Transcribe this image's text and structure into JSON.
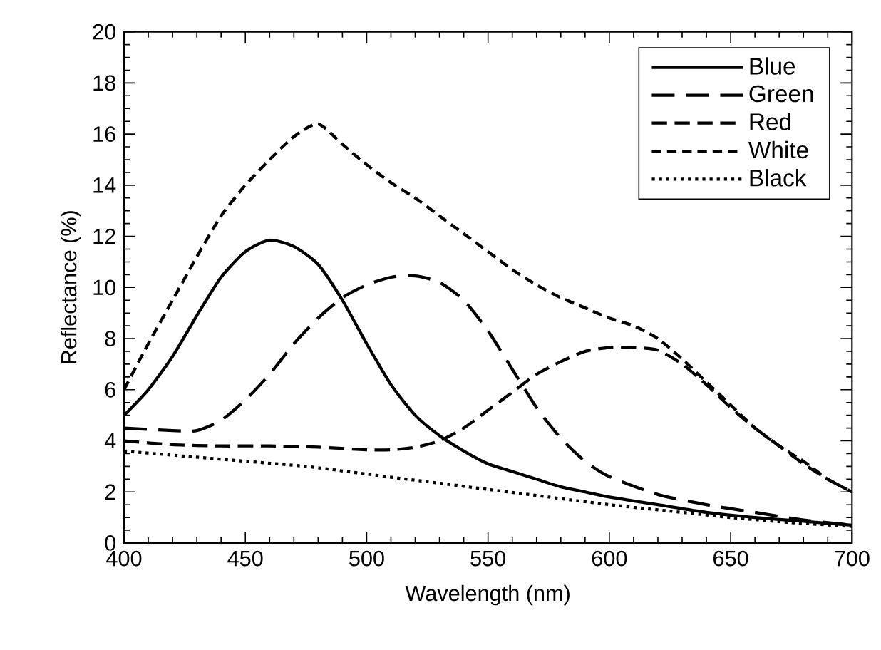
{
  "chart_data": {
    "type": "line",
    "xlabel": "Wavelength (nm)",
    "ylabel": "Reflectance (%)",
    "xlim": [
      400,
      700
    ],
    "xticks": [
      400,
      450,
      500,
      550,
      600,
      650,
      700
    ],
    "ylim": [
      0,
      20
    ],
    "yticks": [
      0,
      2,
      4,
      6,
      8,
      10,
      12,
      14,
      16,
      18,
      20
    ],
    "legend": "top right",
    "series": [
      {
        "name": "Blue",
        "color": "#000000",
        "line_style": "solid",
        "x": [
          400,
          410,
          420,
          430,
          440,
          450,
          460,
          470,
          480,
          490,
          500,
          510,
          520,
          530,
          540,
          550,
          560,
          570,
          580,
          590,
          600,
          620,
          640,
          660,
          680,
          700
        ],
        "values": [
          5.0,
          6.0,
          7.3,
          8.9,
          10.4,
          11.4,
          11.85,
          11.6,
          10.9,
          9.5,
          7.8,
          6.2,
          5.0,
          4.2,
          3.6,
          3.1,
          2.8,
          2.5,
          2.2,
          2.0,
          1.8,
          1.5,
          1.2,
          1.0,
          0.85,
          0.7
        ]
      },
      {
        "name": "Green",
        "color": "#000000",
        "line_style": "dashed",
        "x": [
          400,
          420,
          430,
          440,
          450,
          460,
          470,
          480,
          490,
          500,
          510,
          520,
          530,
          540,
          550,
          560,
          570,
          580,
          590,
          600,
          620,
          640,
          660,
          680,
          700
        ],
        "values": [
          4.5,
          4.4,
          4.4,
          4.8,
          5.6,
          6.6,
          7.8,
          8.8,
          9.6,
          10.1,
          10.4,
          10.45,
          10.2,
          9.5,
          8.3,
          6.8,
          5.3,
          4.1,
          3.2,
          2.6,
          1.9,
          1.5,
          1.2,
          0.9,
          0.7
        ]
      },
      {
        "name": "Red",
        "color": "#000000",
        "line_style": "dashed",
        "x": [
          400,
          420,
          440,
          460,
          480,
          500,
          510,
          520,
          530,
          540,
          550,
          560,
          570,
          580,
          590,
          600,
          610,
          620,
          630,
          640,
          650,
          660,
          670,
          680,
          690,
          700
        ],
        "values": [
          4.0,
          3.85,
          3.8,
          3.8,
          3.75,
          3.65,
          3.65,
          3.75,
          4.0,
          4.5,
          5.2,
          5.9,
          6.6,
          7.1,
          7.5,
          7.65,
          7.65,
          7.55,
          7.0,
          6.2,
          5.3,
          4.5,
          3.8,
          3.1,
          2.5,
          2.0
        ]
      },
      {
        "name": "White",
        "color": "#000000",
        "line_style": "dashed",
        "x": [
          400,
          410,
          420,
          430,
          440,
          450,
          460,
          470,
          480,
          490,
          500,
          510,
          520,
          530,
          540,
          550,
          560,
          570,
          580,
          590,
          600,
          610,
          620,
          630,
          640,
          650,
          660,
          670,
          680,
          690,
          700
        ],
        "values": [
          6.0,
          7.8,
          9.5,
          11.2,
          12.8,
          14.0,
          15.0,
          15.9,
          16.4,
          15.6,
          14.8,
          14.1,
          13.5,
          12.8,
          12.1,
          11.4,
          10.7,
          10.1,
          9.6,
          9.2,
          8.8,
          8.5,
          8.0,
          7.2,
          6.3,
          5.4,
          4.5,
          3.8,
          3.2,
          2.5,
          2.0
        ]
      },
      {
        "name": "Black",
        "color": "#000000",
        "line_style": "dotted",
        "x": [
          400,
          425,
          450,
          475,
          500,
          525,
          550,
          575,
          600,
          625,
          650,
          675,
          700
        ],
        "values": [
          3.6,
          3.4,
          3.2,
          3.0,
          2.7,
          2.4,
          2.1,
          1.8,
          1.5,
          1.25,
          1.0,
          0.8,
          0.65
        ]
      }
    ]
  }
}
